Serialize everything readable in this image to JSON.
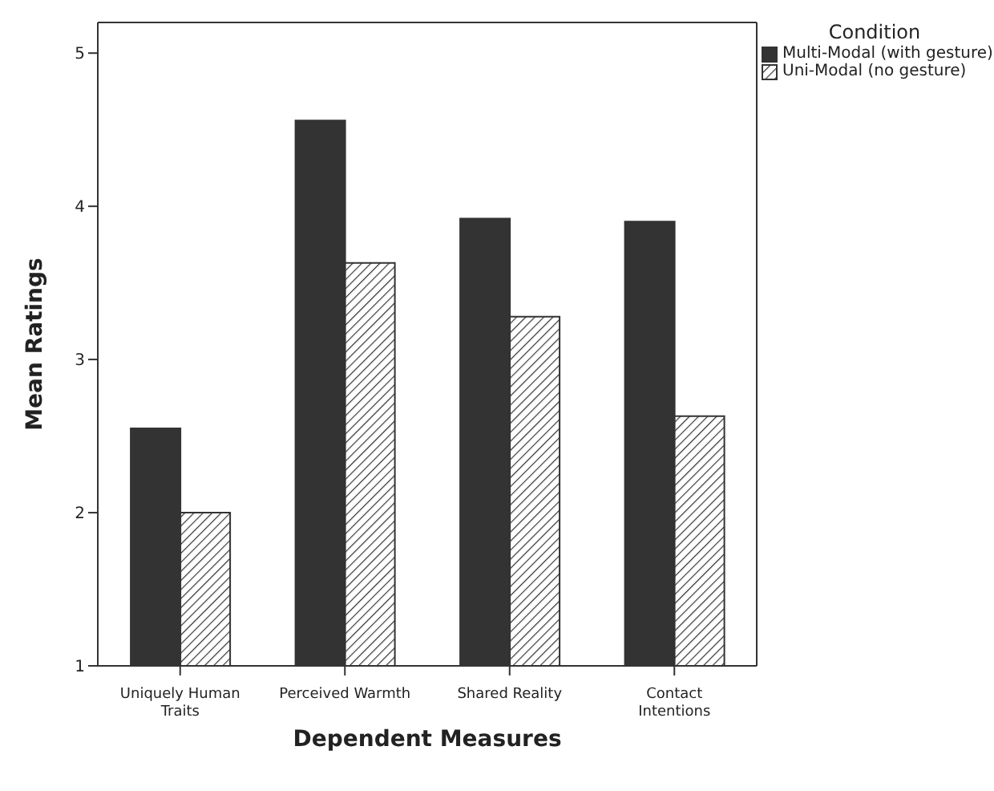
{
  "chart_data": {
    "type": "bar",
    "xlabel": "Dependent Measures",
    "ylabel": "Mean Ratings",
    "legend_title": "Condition",
    "legend": "top right",
    "categories": [
      "Uniquely Human Traits",
      "Perceived Warmth",
      "Shared Reality",
      "Contact Intentions"
    ],
    "series": [
      {
        "name": "Multi-Modal (with gesture)",
        "color": "#333333",
        "values": [
          2.55,
          4.56,
          3.92,
          3.9
        ]
      },
      {
        "name": "Uni-Modal (no gesture)",
        "color": "#333333",
        "values": [
          2.0,
          3.63,
          3.28,
          2.63
        ]
      }
    ],
    "ylim": [
      1,
      5.2
    ],
    "yticks": [
      1,
      2,
      3,
      4,
      5
    ],
    "grid": false
  }
}
